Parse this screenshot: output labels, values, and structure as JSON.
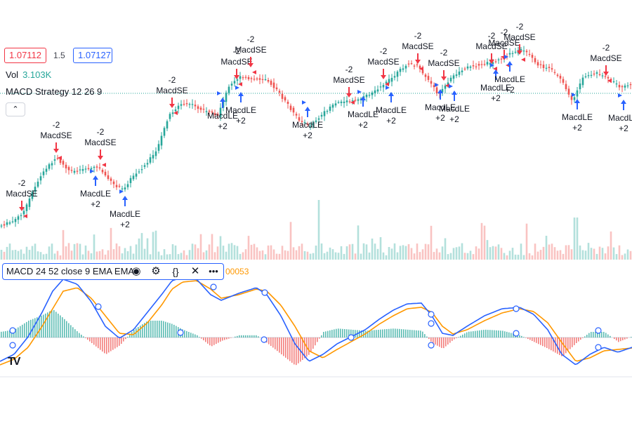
{
  "header": {
    "bid_price": "1.07112",
    "spread": "1.5",
    "ask_price": "1.07127",
    "volume_label": "Vol",
    "volume_value": "3.103K",
    "strategy_label": "MACD Strategy 12 26 9",
    "collapse_icon": "chevron-up-icon"
  },
  "macd_pane": {
    "label": "MACD 24 52 close 9 EMA EMA",
    "value_partial": "00053",
    "icons": [
      "eye-icon",
      "gear-icon",
      "braces-icon",
      "close-icon",
      "more-icon"
    ]
  },
  "signals": {
    "short_label": "MacdSE",
    "long_label": "MacdLE",
    "short_qty": "-2",
    "long_qty": "+2"
  },
  "colors": {
    "up": "#26a69a",
    "down": "#ef5350",
    "macd_line": "#2962ff",
    "signal_line": "#ff9800",
    "short_arrow": "#f23645",
    "long_arrow": "#2962ff"
  },
  "logo": "TV"
}
